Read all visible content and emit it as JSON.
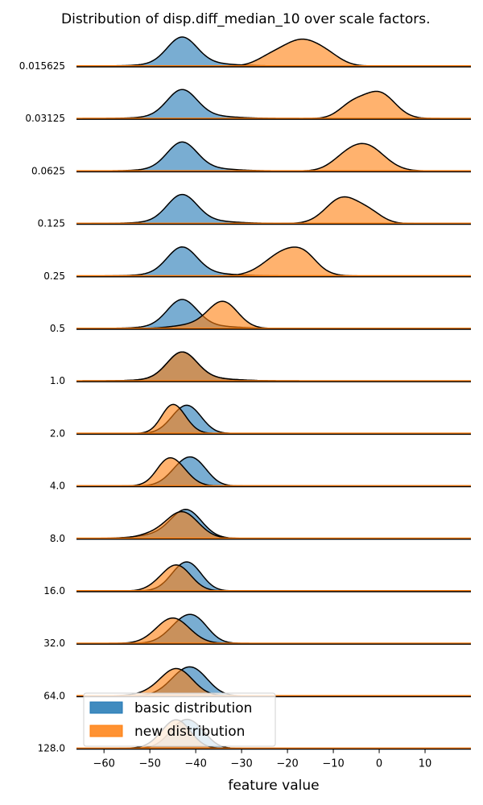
{
  "chart_data": {
    "type": "area",
    "subtype": "ridgeline",
    "title": "Distribution of disp.diff_median_10 over scale factors.",
    "xlabel": "feature value",
    "xlim": [
      -66,
      20
    ],
    "xticks": [
      -60,
      -50,
      -40,
      -30,
      -20,
      -10,
      0,
      10
    ],
    "xtick_labels": [
      "−60",
      "−50",
      "−40",
      "−30",
      "−20",
      "−10",
      "0",
      "10"
    ],
    "legend": {
      "placement": "bottom-left",
      "entries": [
        {
          "label": "basic distribution",
          "color": "#1f77b4"
        },
        {
          "label": "new distribution",
          "color": "#ff7f0e"
        }
      ]
    },
    "series_colors": {
      "basic": "#1f77b4",
      "new": "#ff7f0e"
    },
    "fill_opacity": 0.6,
    "rows": [
      {
        "label": "0.015625",
        "basic": [
          {
            "mu": -43,
            "sigma": 3.2,
            "w": 1.0
          },
          {
            "mu": -41,
            "sigma": 7.0,
            "w": 0.14
          }
        ],
        "new": [
          {
            "mu": -17,
            "sigma": 4.2,
            "w": 1.0
          },
          {
            "mu": -24,
            "sigma": 3.0,
            "w": 0.25
          },
          {
            "mu": -11,
            "sigma": 3.0,
            "w": 0.25
          }
        ]
      },
      {
        "label": "0.03125",
        "basic": [
          {
            "mu": -43,
            "sigma": 3.2,
            "w": 1.0
          },
          {
            "mu": -41,
            "sigma": 7.0,
            "w": 0.14
          }
        ],
        "new": [
          {
            "mu": 0,
            "sigma": 3.4,
            "w": 1.0
          },
          {
            "mu": -6,
            "sigma": 2.8,
            "w": 0.5
          }
        ]
      },
      {
        "label": "0.0625",
        "basic": [
          {
            "mu": -43,
            "sigma": 3.2,
            "w": 1.0
          },
          {
            "mu": -41,
            "sigma": 7.0,
            "w": 0.14
          }
        ],
        "new": [
          {
            "mu": -3,
            "sigma": 4.0,
            "w": 1.0
          },
          {
            "mu": -8,
            "sigma": 3.0,
            "w": 0.25
          }
        ]
      },
      {
        "label": "0.125",
        "basic": [
          {
            "mu": -43,
            "sigma": 3.2,
            "w": 1.0
          },
          {
            "mu": -41,
            "sigma": 7.0,
            "w": 0.14
          }
        ],
        "new": [
          {
            "mu": -8,
            "sigma": 3.6,
            "w": 1.0
          },
          {
            "mu": -2,
            "sigma": 2.8,
            "w": 0.35
          }
        ]
      },
      {
        "label": "0.25",
        "basic": [
          {
            "mu": -43,
            "sigma": 3.2,
            "w": 1.0
          },
          {
            "mu": -41,
            "sigma": 7.0,
            "w": 0.14
          }
        ],
        "new": [
          {
            "mu": -20,
            "sigma": 4.5,
            "w": 1.0
          },
          {
            "mu": -16,
            "sigma": 2.5,
            "w": 0.3
          }
        ]
      },
      {
        "label": "0.5",
        "basic": [
          {
            "mu": -43,
            "sigma": 3.2,
            "w": 1.0
          },
          {
            "mu": -41,
            "sigma": 7.0,
            "w": 0.14
          }
        ],
        "new": [
          {
            "mu": -34,
            "sigma": 3.2,
            "w": 1.0
          },
          {
            "mu": -40,
            "sigma": 4.5,
            "w": 0.15
          }
        ]
      },
      {
        "label": "1.0",
        "basic": [
          {
            "mu": -43,
            "sigma": 3.2,
            "w": 1.0
          },
          {
            "mu": -41,
            "sigma": 7.0,
            "w": 0.14
          }
        ],
        "new": [
          {
            "mu": -43,
            "sigma": 3.2,
            "w": 1.0
          },
          {
            "mu": -41,
            "sigma": 7.0,
            "w": 0.14
          }
        ]
      },
      {
        "label": "2.0",
        "basic": [
          {
            "mu": -42.5,
            "sigma": 3.0,
            "w": 1.0
          },
          {
            "mu": -40,
            "sigma": 2.5,
            "w": 0.25
          }
        ],
        "new": [
          {
            "mu": -44.5,
            "sigma": 2.6,
            "w": 1.0
          },
          {
            "mu": -46,
            "sigma": 2.0,
            "w": 0.25
          }
        ]
      },
      {
        "label": "4.0",
        "basic": [
          {
            "mu": -42,
            "sigma": 3.2,
            "w": 1.0
          },
          {
            "mu": -39,
            "sigma": 2.5,
            "w": 0.3
          }
        ],
        "new": [
          {
            "mu": -45,
            "sigma": 3.0,
            "w": 1.0
          },
          {
            "mu": -47,
            "sigma": 2.0,
            "w": 0.2
          }
        ]
      },
      {
        "label": "8.0",
        "basic": [
          {
            "mu": -42,
            "sigma": 3.3,
            "w": 1.0
          },
          {
            "mu": -47,
            "sigma": 5.0,
            "w": 0.15
          }
        ],
        "new": [
          {
            "mu": -43,
            "sigma": 3.5,
            "w": 1.0
          },
          {
            "mu": -50,
            "sigma": 3.0,
            "w": 0.12
          }
        ]
      },
      {
        "label": "16.0",
        "basic": [
          {
            "mu": -42.5,
            "sigma": 3.0,
            "w": 1.0
          },
          {
            "mu": -40,
            "sigma": 2.5,
            "w": 0.25
          }
        ],
        "new": [
          {
            "mu": -44,
            "sigma": 3.0,
            "w": 1.0
          },
          {
            "mu": -48,
            "sigma": 2.5,
            "w": 0.15
          }
        ]
      },
      {
        "label": "32.0",
        "basic": [
          {
            "mu": -42,
            "sigma": 3.5,
            "w": 1.0
          },
          {
            "mu": -39,
            "sigma": 2.5,
            "w": 0.25
          }
        ],
        "new": [
          {
            "mu": -45,
            "sigma": 3.6,
            "w": 1.0
          }
        ]
      },
      {
        "label": "64.0",
        "basic": [
          {
            "mu": -42,
            "sigma": 3.6,
            "w": 1.0
          },
          {
            "mu": -39,
            "sigma": 2.8,
            "w": 0.25
          }
        ],
        "new": [
          {
            "mu": -44,
            "sigma": 3.4,
            "w": 1.0
          },
          {
            "mu": -48,
            "sigma": 4.0,
            "w": 0.15
          }
        ]
      },
      {
        "label": "128.0",
        "basic": [
          {
            "mu": -42.5,
            "sigma": 3.2,
            "w": 1.0
          },
          {
            "mu": -39,
            "sigma": 2.5,
            "w": 0.25
          }
        ],
        "new": [
          {
            "mu": -44,
            "sigma": 3.0,
            "w": 1.0
          },
          {
            "mu": -47,
            "sigma": 3.0,
            "w": 0.15
          }
        ]
      }
    ]
  }
}
